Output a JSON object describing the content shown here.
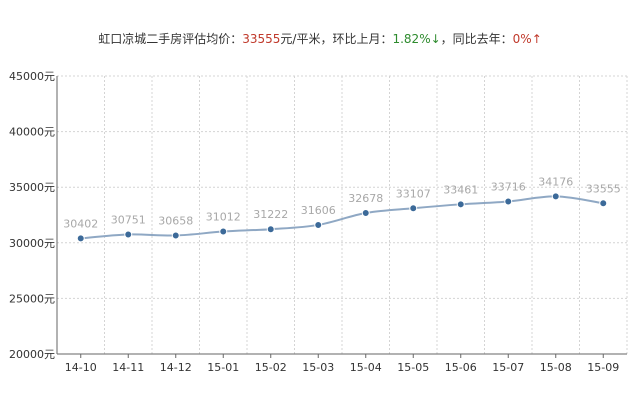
{
  "summary": {
    "prefix": "虹口凉城二手房评估均价：",
    "price": "33555",
    "unit": "元/平米，环比上月：",
    "mom": "1.82%",
    "mom_arrow": "↓",
    "yoy_label": "，同比去年：",
    "yoy": "0%",
    "yoy_arrow": "↑"
  },
  "chart_data": {
    "type": "line",
    "title": "",
    "xlabel": "",
    "ylabel": "",
    "categories": [
      "14-10",
      "14-11",
      "14-12",
      "15-01",
      "15-02",
      "15-03",
      "15-04",
      "15-05",
      "15-06",
      "15-07",
      "15-08",
      "15-09"
    ],
    "values": [
      30402,
      30751,
      30658,
      31012,
      31222,
      31606,
      32678,
      33107,
      33461,
      33716,
      34176,
      33555
    ],
    "value_labels": [
      "30402",
      "30751",
      "30658",
      "31012",
      "31222",
      "31606",
      "32678",
      "33107",
      "33461",
      "33716",
      "34176",
      "33555"
    ],
    "ylim": [
      20000,
      45000
    ],
    "yticks": [
      20000,
      25000,
      30000,
      35000,
      40000,
      45000
    ],
    "ytick_labels": [
      "20000元",
      "25000元",
      "30000元",
      "35000元",
      "40000元",
      "45000元"
    ],
    "grid": true,
    "line_color": "#8fa8c4",
    "marker_color": "#3c6a99"
  }
}
